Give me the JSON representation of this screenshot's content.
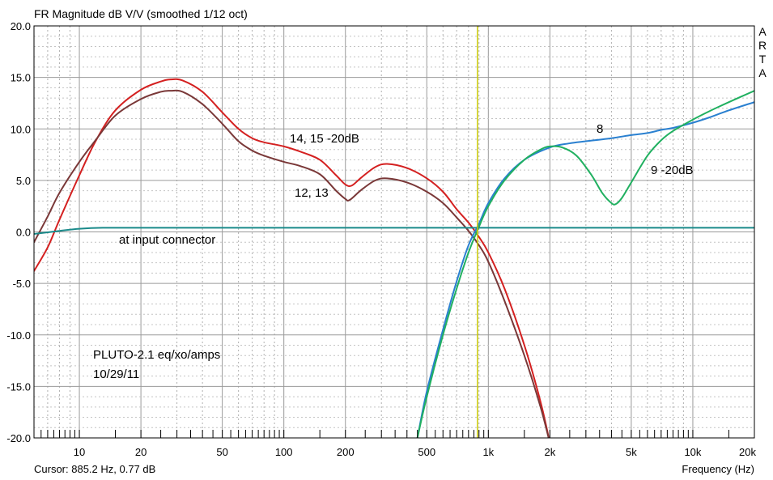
{
  "chart_data": {
    "type": "line",
    "title": "FR Magnitude dB V/V (smoothed 1/12 oct)",
    "xlabel": "Frequency (Hz)",
    "ylabel": "",
    "x_scale": "log",
    "xlim": [
      6,
      20000
    ],
    "ylim": [
      -20,
      20
    ],
    "x_ticks": [
      10,
      20,
      50,
      100,
      200,
      500,
      1000,
      2000,
      5000,
      10000,
      20000
    ],
    "x_tick_labels": [
      "10",
      "20",
      "50",
      "100",
      "200",
      "500",
      "1k",
      "2k",
      "5k",
      "10k",
      "20k"
    ],
    "y_ticks": [
      -20,
      -15,
      -10,
      -5,
      0,
      5,
      10,
      15,
      20
    ],
    "y_tick_labels": [
      "-20.0",
      "-15.0",
      "-10.0",
      "-5.0",
      "0.0",
      "5.0",
      "10.0",
      "15.0",
      "20.0"
    ],
    "grid": true,
    "cursor": {
      "frequency": 885.2,
      "label": "Cursor: 885.2 Hz, 0.77 dB",
      "color": "#c8c800"
    },
    "watermark": [
      "A",
      "R",
      "T",
      "A"
    ],
    "annotations": {
      "curve_14_15": "14, 15 -20dB",
      "curve_12_13": "12, 13",
      "curve_8": "8",
      "curve_9": "9 -20dB",
      "input": "at input connector",
      "note_line1": "PLUTO-2.1 eq/xo/amps",
      "note_line2": "10/29/11"
    },
    "series": [
      {
        "color": "#d42020",
        "points": [
          [
            6,
            -3.8
          ],
          [
            7,
            -1.5
          ],
          [
            8,
            1.2
          ],
          [
            10,
            5.5
          ],
          [
            12,
            8.8
          ],
          [
            15,
            11.8
          ],
          [
            20,
            13.8
          ],
          [
            25,
            14.6
          ],
          [
            28,
            14.8
          ],
          [
            32,
            14.7
          ],
          [
            40,
            13.6
          ],
          [
            50,
            11.6
          ],
          [
            60,
            10.0
          ],
          [
            70,
            9.1
          ],
          [
            80,
            8.7
          ],
          [
            100,
            8.3
          ],
          [
            120,
            7.8
          ],
          [
            150,
            7.0
          ],
          [
            180,
            5.5
          ],
          [
            200,
            4.6
          ],
          [
            215,
            4.5
          ],
          [
            240,
            5.3
          ],
          [
            280,
            6.3
          ],
          [
            320,
            6.6
          ],
          [
            400,
            6.2
          ],
          [
            500,
            5.2
          ],
          [
            600,
            3.9
          ],
          [
            700,
            2.2
          ],
          [
            800,
            0.9
          ],
          [
            900,
            -0.5
          ],
          [
            1000,
            -2.0
          ],
          [
            1200,
            -5.5
          ],
          [
            1500,
            -11.0
          ],
          [
            1800,
            -16.5
          ],
          [
            2000,
            -20.5
          ]
        ]
      },
      {
        "color": "#7a3838",
        "points": [
          [
            6,
            -1.0
          ],
          [
            7,
            1.5
          ],
          [
            8,
            3.8
          ],
          [
            10,
            6.8
          ],
          [
            12,
            8.9
          ],
          [
            15,
            11.3
          ],
          [
            20,
            12.9
          ],
          [
            25,
            13.6
          ],
          [
            28,
            13.7
          ],
          [
            32,
            13.6
          ],
          [
            40,
            12.4
          ],
          [
            50,
            10.5
          ],
          [
            60,
            8.8
          ],
          [
            70,
            7.9
          ],
          [
            80,
            7.4
          ],
          [
            100,
            6.8
          ],
          [
            120,
            6.4
          ],
          [
            150,
            5.6
          ],
          [
            180,
            4.0
          ],
          [
            200,
            3.2
          ],
          [
            210,
            3.1
          ],
          [
            240,
            4.1
          ],
          [
            280,
            5.0
          ],
          [
            320,
            5.2
          ],
          [
            400,
            4.8
          ],
          [
            500,
            3.9
          ],
          [
            600,
            2.8
          ],
          [
            700,
            1.4
          ],
          [
            800,
            0.1
          ],
          [
            900,
            -1.3
          ],
          [
            1000,
            -2.9
          ],
          [
            1200,
            -6.7
          ],
          [
            1500,
            -12.0
          ],
          [
            1800,
            -17.0
          ],
          [
            2000,
            -20.5
          ]
        ]
      },
      {
        "color": "#2a80d0",
        "points": [
          [
            450,
            -20
          ],
          [
            500,
            -15.5
          ],
          [
            600,
            -9.5
          ],
          [
            700,
            -4.8
          ],
          [
            800,
            -1.3
          ],
          [
            900,
            0.8
          ],
          [
            1000,
            2.8
          ],
          [
            1200,
            5.2
          ],
          [
            1500,
            7.0
          ],
          [
            2000,
            8.2
          ],
          [
            2500,
            8.6
          ],
          [
            3000,
            8.8
          ],
          [
            4000,
            9.1
          ],
          [
            5000,
            9.4
          ],
          [
            6000,
            9.6
          ],
          [
            7000,
            9.9
          ],
          [
            8000,
            10.1
          ],
          [
            10000,
            10.6
          ],
          [
            12000,
            11.1
          ],
          [
            15000,
            11.8
          ],
          [
            20000,
            12.6
          ]
        ]
      },
      {
        "color": "#20b060",
        "points": [
          [
            450,
            -20
          ],
          [
            500,
            -16
          ],
          [
            600,
            -10
          ],
          [
            700,
            -5.5
          ],
          [
            800,
            -2.0
          ],
          [
            900,
            0.5
          ],
          [
            1000,
            2.5
          ],
          [
            1200,
            5.0
          ],
          [
            1500,
            7.0
          ],
          [
            1800,
            8.0
          ],
          [
            2000,
            8.3
          ],
          [
            2300,
            8.2
          ],
          [
            2700,
            7.4
          ],
          [
            3200,
            5.5
          ],
          [
            3600,
            3.8
          ],
          [
            4000,
            2.8
          ],
          [
            4200,
            2.7
          ],
          [
            4500,
            3.3
          ],
          [
            5000,
            4.8
          ],
          [
            6000,
            7.4
          ],
          [
            7000,
            8.9
          ],
          [
            8000,
            9.8
          ],
          [
            10000,
            10.9
          ],
          [
            12000,
            11.7
          ],
          [
            15000,
            12.6
          ],
          [
            20000,
            13.7
          ]
        ]
      },
      {
        "color": "#1a8a8a",
        "points": [
          [
            6,
            -0.2
          ],
          [
            8,
            0.1
          ],
          [
            10,
            0.3
          ],
          [
            13,
            0.4
          ],
          [
            20,
            0.4
          ],
          [
            100,
            0.4
          ],
          [
            1000,
            0.4
          ],
          [
            10000,
            0.4
          ],
          [
            20000,
            0.4
          ]
        ]
      }
    ]
  }
}
